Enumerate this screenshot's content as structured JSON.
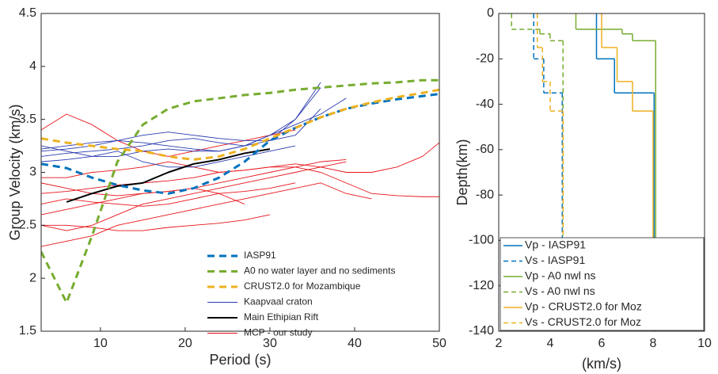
{
  "chart_data": [
    {
      "type": "line",
      "xlabel": "Period (s)",
      "ylabel": "Group Velocity (km/s)",
      "xlim": [
        3,
        50
      ],
      "xticks": [
        10,
        20,
        30,
        40,
        50
      ],
      "ylim": [
        1.5,
        4.5
      ],
      "yticks": [
        1.5,
        2,
        2.5,
        3,
        3.5,
        4,
        4.5
      ],
      "legend": "lower right",
      "x": [
        3,
        6,
        9,
        12,
        15,
        18,
        21,
        24,
        27,
        30,
        33,
        36,
        39,
        42,
        45,
        48,
        50
      ],
      "series": [
        {
          "name": "IASP91",
          "color": "#0072bd",
          "style": "dashed",
          "linewidth": 3,
          "values": [
            3.08,
            3.04,
            2.95,
            2.88,
            2.83,
            2.8,
            2.85,
            2.95,
            3.1,
            3.3,
            3.42,
            3.52,
            3.6,
            3.65,
            3.69,
            3.72,
            3.74
          ]
        },
        {
          "name": "A0 no water layer and no sediments",
          "color": "#77ac30",
          "style": "dashed",
          "linewidth": 3,
          "values": [
            2.25,
            1.77,
            2.4,
            3.1,
            3.45,
            3.6,
            3.67,
            3.7,
            3.73,
            3.75,
            3.78,
            3.8,
            3.82,
            3.84,
            3.85,
            3.87,
            3.87
          ]
        },
        {
          "name": "CRUST2.0 for Mozambique",
          "color": "#edb120",
          "style": "dashed",
          "linewidth": 3,
          "values": [
            3.32,
            3.28,
            3.25,
            3.22,
            3.2,
            3.15,
            3.12,
            3.15,
            3.22,
            3.32,
            3.42,
            3.52,
            3.6,
            3.66,
            3.71,
            3.75,
            3.78
          ]
        },
        {
          "name": "Kaapvaal craton",
          "color": "#2b3baf",
          "style": "solid",
          "linewidth": 0.9,
          "values": [
            [
              3.2,
              3.22,
              3.25,
              3.3,
              3.35,
              3.38,
              3.35,
              3.32,
              3.3,
              3.3,
              3.35,
              3.6,
              null,
              null,
              null,
              null,
              null
            ],
            [
              3.15,
              3.18,
              3.2,
              3.22,
              3.25,
              3.3,
              3.32,
              3.28,
              3.25,
              3.3,
              3.5,
              3.8,
              null,
              null,
              null,
              null,
              null
            ],
            [
              3.25,
              3.2,
              3.15,
              3.15,
              3.2,
              3.22,
              3.2,
              3.2,
              3.25,
              3.35,
              3.45,
              3.55,
              3.7,
              null,
              null,
              null,
              null
            ],
            [
              3.1,
              3.12,
              3.15,
              3.2,
              3.1,
              3.05,
              3.05,
              3.1,
              3.15,
              3.2,
              3.25,
              null,
              null,
              null,
              null,
              null,
              null
            ],
            [
              3.22,
              3.25,
              3.28,
              3.3,
              3.28,
              3.25,
              3.22,
              3.2,
              3.25,
              3.35,
              3.5,
              3.85,
              null,
              null,
              null,
              null,
              null
            ]
          ]
        },
        {
          "name": "Main Ethipian Rift",
          "color": "#000000",
          "style": "solid",
          "linewidth": 2,
          "values": [
            null,
            2.72,
            2.8,
            2.87,
            2.9,
            3.0,
            3.08,
            3.12,
            3.18,
            3.22,
            null,
            null,
            null,
            null,
            null,
            null,
            null
          ]
        },
        {
          "name": "MCP - our study",
          "color": "#e8141b",
          "style": "solid",
          "linewidth": 0.9,
          "values": [
            [
              3.4,
              3.55,
              3.45,
              3.3,
              3.2,
              3.15,
              3.2,
              3.25,
              3.3,
              3.35,
              3.4,
              null,
              null,
              null,
              null,
              null,
              null
            ],
            [
              2.95,
              2.95,
              3.0,
              3.02,
              3.05,
              3.1,
              3.05,
              3.0,
              3.02,
              3.05,
              3.08,
              3.05,
              3.0,
              3.0,
              3.05,
              3.15,
              3.28
            ],
            [
              2.8,
              2.82,
              2.85,
              2.88,
              2.9,
              2.92,
              2.95,
              3.0,
              3.02,
              3.05,
              3.05,
              3.0,
              2.9,
              2.8,
              2.78,
              2.77,
              2.77
            ],
            [
              2.5,
              2.45,
              2.5,
              2.6,
              2.7,
              2.75,
              2.8,
              2.85,
              2.9,
              2.95,
              3.0,
              3.05,
              3.1,
              null,
              null,
              null,
              null
            ],
            [
              2.3,
              2.35,
              2.4,
              2.5,
              2.55,
              2.6,
              2.65,
              2.7,
              2.75,
              2.8,
              2.85,
              2.9,
              2.8,
              2.75,
              null,
              null,
              null
            ],
            [
              2.7,
              2.75,
              2.72,
              2.7,
              2.68,
              2.7,
              2.75,
              2.8,
              2.82,
              2.85,
              2.9,
              null,
              null,
              null,
              null,
              null,
              null
            ],
            [
              2.5,
              2.5,
              2.48,
              2.45,
              2.45,
              2.48,
              2.5,
              2.52,
              2.55,
              2.6,
              null,
              null,
              null,
              null,
              null,
              null,
              null
            ],
            [
              2.6,
              2.65,
              2.7,
              2.75,
              2.8,
              2.82,
              2.85,
              2.8,
              2.7,
              null,
              null,
              null,
              null,
              null,
              null,
              null,
              null
            ],
            [
              2.9,
              2.85,
              2.8,
              2.78,
              2.8,
              2.82,
              2.85,
              2.9,
              2.95,
              3.0,
              3.05,
              3.1,
              3.12,
              null,
              null,
              null,
              null
            ]
          ]
        }
      ]
    },
    {
      "type": "step",
      "xlabel": "(km/s)",
      "ylabel": "Depth(km)",
      "xlim": [
        2,
        10
      ],
      "xticks": [
        2,
        4,
        6,
        8,
        10
      ],
      "ylim": [
        -140,
        0
      ],
      "yticks": [
        0,
        -20,
        -40,
        -60,
        -80,
        -100,
        -120,
        -140
      ],
      "legend": "lower left",
      "series": [
        {
          "name": "Vp - IASP91",
          "color": "#0072bd",
          "style": "solid",
          "values": [
            5.8,
            6.5,
            8.04
          ],
          "depths": [
            0,
            -20,
            -35
          ]
        },
        {
          "name": "Vs - IASP91",
          "color": "#0072bd",
          "style": "dashed",
          "values": [
            3.36,
            3.75,
            4.47
          ],
          "depths": [
            0,
            -20,
            -35
          ]
        },
        {
          "name": "Vp - A0 nwl ns",
          "color": "#77ac30",
          "style": "solid",
          "values": [
            5.0,
            6.8,
            7.2,
            8.1
          ],
          "depths": [
            0,
            -7,
            -9,
            -12
          ]
        },
        {
          "name": "Vs - A0 nwl ns",
          "color": "#77ac30",
          "style": "dashed",
          "values": [
            2.5,
            3.6,
            4.0,
            4.5
          ],
          "depths": [
            0,
            -7,
            -9,
            -12
          ]
        },
        {
          "name": "Vp - CRUST2.0 for Moz",
          "color": "#edb120",
          "style": "solid",
          "values": [
            6.0,
            6.6,
            7.2,
            8.0
          ],
          "depths": [
            0,
            -15,
            -30,
            -43
          ]
        },
        {
          "name": "Vs - CRUST2.0 for Moz",
          "color": "#edb120",
          "style": "dashed",
          "values": [
            3.5,
            3.7,
            4.0,
            4.5
          ],
          "depths": [
            0,
            -15,
            -30,
            -43
          ]
        }
      ]
    }
  ]
}
